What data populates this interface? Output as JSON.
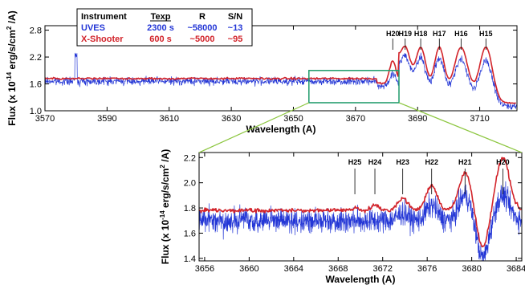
{
  "legend": {
    "headers": [
      "Instrument",
      "Texp",
      "R",
      "S/N"
    ],
    "rows": [
      {
        "instrument": "UVES",
        "texp": "2300 s",
        "r": "~58000",
        "sn": "~13",
        "color": "#2437d6"
      },
      {
        "instrument": "X-Shooter",
        "texp": "600 s",
        "r": "~5000",
        "sn": "~95",
        "color": "#d2232a"
      }
    ]
  },
  "colors": {
    "uves": "#2437d6",
    "xshooter": "#d2232a",
    "zoom_box": "#1f9a6a",
    "connector": "#8cc63f"
  },
  "chart_data": [
    {
      "type": "line",
      "xlabel": "Wavelength (A)",
      "ylabel": "Flux (x 10^-14 erg/s/cm^2 /A)",
      "ylabel_parts": {
        "main": "Flux (x 10",
        "exp": "-14",
        "mid": " erg/s/cm",
        "exp2": "2",
        "end": " /A)"
      },
      "xlim": [
        3570,
        3722
      ],
      "ylim": [
        1.0,
        2.9
      ],
      "xticks": [
        3570,
        3590,
        3610,
        3630,
        3650,
        3670,
        3690,
        3710
      ],
      "yticks": [
        1.0,
        1.6,
        2.2,
        2.8
      ],
      "series": [
        {
          "name": "UVES",
          "continuum": 1.66,
          "noise": 0.08
        },
        {
          "name": "X-Shooter",
          "continuum": 1.72,
          "noise": 0.02
        }
      ],
      "lines": [
        {
          "label": "H20",
          "x": 3682
        },
        {
          "label": "H19",
          "x": 3686
        },
        {
          "label": "H18",
          "x": 3691
        },
        {
          "label": "H17",
          "x": 3697
        },
        {
          "label": "H16",
          "x": 3704
        },
        {
          "label": "H15",
          "x": 3712
        }
      ],
      "zoom_region": [
        3655,
        3684
      ]
    },
    {
      "type": "line",
      "xlabel": "Wavelength (A)",
      "ylabel": "Flux (x 10^-14 erg/s/cm^2 /A)",
      "ylabel_parts": {
        "main": "Flux (x 10",
        "exp": "-14",
        "mid": " erg/s/cm",
        "exp2": "2",
        "end": " /A)"
      },
      "xlim": [
        3655.5,
        3684.5
      ],
      "ylim": [
        1.38,
        2.24
      ],
      "xticks": [
        3656,
        3660,
        3664,
        3668,
        3672,
        3676,
        3680,
        3684
      ],
      "yticks": [
        1.4,
        1.6,
        1.8,
        2.0,
        2.2
      ],
      "series": [
        {
          "name": "UVES",
          "continuum": 1.7,
          "noise": 0.09
        },
        {
          "name": "X-Shooter",
          "continuum": 1.78,
          "noise": 0.015
        }
      ],
      "lines": [
        {
          "label": "H25",
          "x": 3669.5
        },
        {
          "label": "H24",
          "x": 3671.3
        },
        {
          "label": "H23",
          "x": 3673.8
        },
        {
          "label": "H22",
          "x": 3676.4
        },
        {
          "label": "H21",
          "x": 3679.4
        },
        {
          "label": "H20",
          "x": 3682.8
        }
      ]
    }
  ]
}
